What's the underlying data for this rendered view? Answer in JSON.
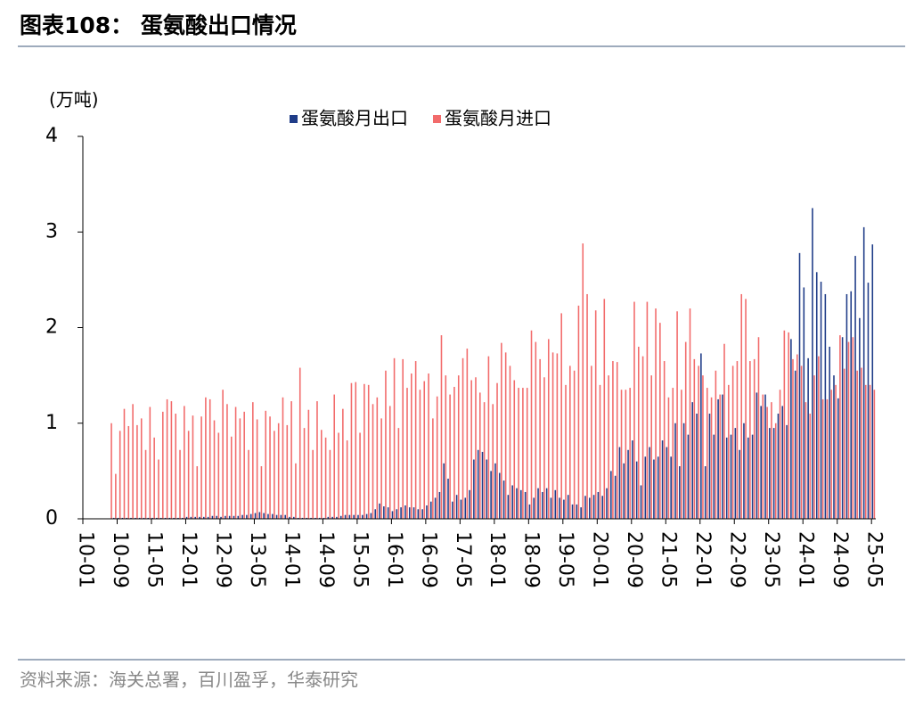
{
  "header": {
    "title": "图表108：  蛋氨酸出口情况"
  },
  "chart_data": {
    "type": "bar",
    "y_label": "(万吨)",
    "categories": [
      "10-01",
      null,
      null,
      null,
      null,
      null,
      null,
      null,
      "10-09",
      null,
      null,
      null,
      null,
      null,
      null,
      null,
      "11-05",
      null,
      null,
      null,
      null,
      null,
      null,
      null,
      "12-01",
      null,
      null,
      null,
      null,
      null,
      null,
      null,
      "12-09",
      null,
      null,
      null,
      null,
      null,
      null,
      null,
      "13-05",
      null,
      null,
      null,
      null,
      null,
      null,
      null,
      "14-01",
      null,
      null,
      null,
      null,
      null,
      null,
      null,
      "14-09",
      null,
      null,
      null,
      null,
      null,
      null,
      null,
      "15-05",
      null,
      null,
      null,
      null,
      null,
      null,
      null,
      "16-01",
      null,
      null,
      null,
      null,
      null,
      null,
      null,
      "16-09",
      null,
      null,
      null,
      null,
      null,
      null,
      null,
      "17-05",
      null,
      null,
      null,
      null,
      null,
      null,
      null,
      "18-01",
      null,
      null,
      null,
      null,
      null,
      null,
      null,
      "18-09",
      null,
      null,
      null,
      null,
      null,
      null,
      null,
      "19-05",
      null,
      null,
      null,
      null,
      null,
      null,
      null,
      "20-01",
      null,
      null,
      null,
      null,
      null,
      null,
      null,
      "20-09",
      null,
      null,
      null,
      null,
      null,
      null,
      null,
      "21-05",
      null,
      null,
      null,
      null,
      null,
      null,
      null,
      "22-01",
      null,
      null,
      null,
      null,
      null,
      null,
      null,
      "22-09",
      null,
      null,
      null,
      null,
      null,
      null,
      null,
      "23-05",
      null,
      null,
      null,
      null,
      null,
      null,
      null,
      "24-01",
      null,
      null,
      null,
      null,
      null,
      null,
      null,
      "24-09",
      null,
      null,
      null,
      null,
      null,
      null,
      null,
      "25-05"
    ],
    "series": [
      {
        "name": "蛋氨酸月出口",
        "color": "#1f3c88",
        "values": [
          0,
          0,
          0,
          0,
          0,
          0,
          0,
          0.01,
          0.01,
          0.01,
          0.01,
          0.01,
          0.01,
          0.01,
          0.01,
          0.01,
          0.01,
          0.01,
          0.01,
          0.01,
          0.01,
          0.01,
          0.01,
          0.01,
          0.02,
          0.02,
          0.02,
          0.02,
          0.02,
          0.02,
          0.03,
          0.03,
          0.02,
          0.03,
          0.03,
          0.03,
          0.03,
          0.04,
          0.04,
          0.05,
          0.06,
          0.07,
          0.06,
          0.05,
          0.05,
          0.04,
          0.04,
          0.04,
          0.02,
          0.02,
          0.01,
          0.01,
          0.01,
          0.01,
          0.01,
          0.01,
          0.01,
          0.02,
          0.02,
          0.02,
          0.03,
          0.04,
          0.04,
          0.04,
          0.04,
          0.04,
          0.05,
          0.06,
          0.1,
          0.16,
          0.13,
          0.12,
          0.08,
          0.1,
          0.12,
          0.14,
          0.12,
          0.12,
          0.1,
          0.1,
          0.14,
          0.18,
          0.22,
          0.28,
          0.58,
          0.42,
          0.18,
          0.25,
          0.2,
          0.22,
          0.3,
          0.62,
          0.72,
          0.7,
          0.62,
          0.5,
          0.58,
          0.48,
          0.4,
          0.25,
          0.35,
          0.32,
          0.3,
          0.28,
          0.15,
          0.22,
          0.32,
          0.28,
          0.32,
          0.22,
          0.3,
          0.22,
          0.2,
          0.25,
          0.15,
          0.15,
          0.12,
          0.24,
          0.22,
          0.25,
          0.28,
          0.24,
          0.32,
          0.5,
          0.45,
          0.75,
          0.58,
          0.72,
          0.82,
          0.6,
          0.35,
          0.65,
          0.75,
          0.62,
          0.65,
          0.82,
          0.75,
          0.65,
          1.0,
          0.55,
          1.0,
          0.88,
          1.22,
          1.1,
          1.73,
          0.55,
          1.1,
          0.88,
          1.25,
          1.3,
          0.85,
          0.88,
          0.95,
          0.72,
          1.0,
          0.85,
          0.88,
          1.32,
          1.18,
          1.3,
          0.95,
          0.95,
          1.1,
          1.18,
          0.98,
          1.88,
          1.55,
          2.78,
          2.42,
          1.68,
          3.25,
          2.58,
          2.48,
          2.35,
          1.8,
          1.5,
          1.26,
          1.9,
          2.35,
          2.38,
          2.75,
          2.1,
          3.05,
          2.47,
          2.87
        ]
      },
      {
        "name": "蛋氨酸月进口",
        "color": "#f26b6b",
        "values": [
          0,
          0,
          0,
          0,
          0,
          0,
          1.0,
          0.47,
          0.92,
          1.15,
          0.97,
          1.2,
          0.98,
          1.05,
          0.72,
          1.17,
          0.85,
          0.62,
          1.12,
          1.25,
          1.23,
          1.1,
          0.72,
          1.18,
          0.92,
          1.08,
          0.55,
          1.07,
          1.27,
          1.25,
          1.03,
          0.9,
          1.35,
          1.2,
          0.86,
          1.17,
          1.05,
          1.12,
          0.72,
          1.22,
          1.04,
          0.55,
          1.13,
          1.07,
          0.92,
          1.0,
          1.27,
          0.98,
          1.23,
          0.58,
          1.58,
          0.95,
          1.14,
          0.72,
          1.23,
          0.93,
          0.85,
          0.72,
          1.3,
          0.9,
          1.15,
          0.82,
          1.42,
          1.43,
          0.9,
          1.41,
          1.4,
          1.2,
          1.27,
          1.05,
          1.55,
          1.18,
          1.68,
          0.95,
          1.67,
          1.37,
          1.52,
          1.65,
          1.35,
          1.44,
          1.52,
          1.05,
          1.28,
          1.92,
          1.5,
          1.3,
          1.38,
          1.5,
          1.68,
          1.78,
          1.45,
          1.48,
          1.32,
          1.22,
          1.7,
          1.2,
          1.42,
          1.84,
          1.74,
          1.6,
          1.45,
          1.37,
          1.37,
          1.37,
          1.97,
          1.85,
          1.67,
          1.48,
          1.88,
          1.74,
          1.73,
          2.15,
          1.4,
          1.6,
          1.55,
          2.23,
          2.88,
          2.35,
          1.6,
          2.18,
          1.4,
          2.3,
          1.5,
          1.65,
          1.64,
          1.35,
          1.35,
          1.37,
          2.27,
          1.8,
          1.7,
          2.27,
          1.5,
          2.2,
          2.05,
          1.65,
          1.27,
          1.37,
          2.17,
          1.35,
          1.85,
          2.2,
          1.67,
          1.6,
          1.5,
          1.37,
          1.27,
          1.55,
          1.3,
          1.83,
          1.4,
          1.6,
          1.65,
          2.35,
          2.3,
          1.65,
          1.67,
          1.9,
          1.3,
          1.17,
          1.22,
          1.0,
          1.35,
          1.97,
          1.95,
          1.67,
          1.72,
          1.6,
          1.22,
          1.1,
          1.5,
          1.7,
          1.25,
          1.25,
          1.35,
          1.4,
          1.92,
          1.57,
          1.85,
          1.9,
          1.55,
          1.58,
          1.4,
          1.4,
          1.35
        ]
      }
    ],
    "ylim": [
      0,
      4
    ],
    "yticks": [
      0,
      1,
      2,
      3,
      4
    ],
    "grid": false,
    "legend": "top"
  },
  "footer": {
    "source": "资料来源：海关总署，百川盈孚，华泰研究"
  }
}
